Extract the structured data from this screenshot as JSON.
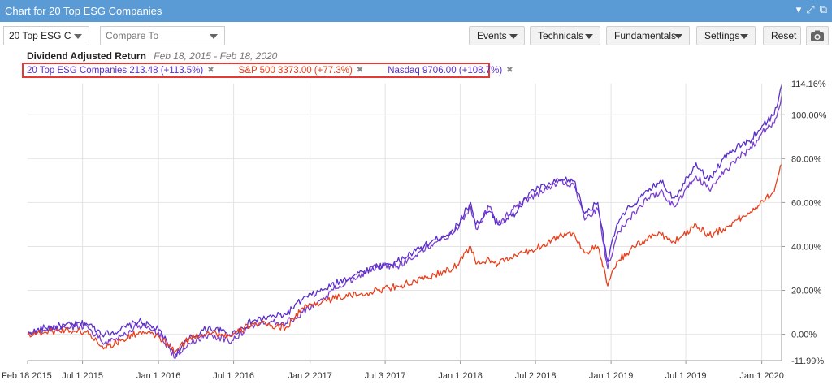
{
  "window": {
    "title": "Chart for 20 Top ESG Companies"
  },
  "toolbar": {
    "symbol_select": "20 Top ESG C",
    "compare_placeholder": "Compare To",
    "events": "Events",
    "technicals": "Technicals",
    "fundamentals": "Fundamentals",
    "settings": "Settings",
    "reset": "Reset"
  },
  "subtitle": {
    "label": "Dividend Adjusted Return",
    "range": "Feb 18, 2015 - Feb 18, 2020"
  },
  "legend": [
    {
      "text": "20 Top ESG Companies 213.48 (+113.5%)",
      "color": "#5b2fc9"
    },
    {
      "text": "S&P 500 3373.00 (+77.3%)",
      "color": "#e8401c"
    },
    {
      "text": "Nasdaq 9706.00 (+108.7%)",
      "color": "#5b2fc9"
    }
  ],
  "colors": {
    "titlebar": "#5b9bd5",
    "esg": "#5b2fc9",
    "sp500": "#e8401c",
    "nasdaq": "#7b3fd0",
    "grid": "#e4e4e4",
    "legend_border": "#e53935"
  },
  "chart_data": {
    "type": "line",
    "title": "Dividend Adjusted Return",
    "ylabel": "",
    "xlabel": "",
    "ylim": [
      -11.99,
      114.16
    ],
    "xlim": [
      "2015-02-18",
      "2020-02-18"
    ],
    "grid": true,
    "legend_position": "top-left",
    "y_ticks": [
      "100.00%",
      "80.00%",
      "60.00%",
      "40.00%",
      "20.00%",
      "0.00%"
    ],
    "y_ticks_values": [
      100,
      80,
      60,
      40,
      20,
      0
    ],
    "y_extremes": [
      {
        "label": "114.16%",
        "value": 114.16
      },
      {
        "label": "-11.99%",
        "value": -11.99
      }
    ],
    "x_ticks": [
      {
        "label": "Feb 18 2015",
        "date": "2015-02-18"
      },
      {
        "label": "Jul 1 2015",
        "date": "2015-07-01"
      },
      {
        "label": "Jan 1 2016",
        "date": "2016-01-01"
      },
      {
        "label": "Jul 1 2016",
        "date": "2016-07-01"
      },
      {
        "label": "Jan 2 2017",
        "date": "2017-01-02"
      },
      {
        "label": "Jul 3 2017",
        "date": "2017-07-03"
      },
      {
        "label": "Jan 1 2018",
        "date": "2018-01-01"
      },
      {
        "label": "Jul 2 2018",
        "date": "2018-07-02"
      },
      {
        "label": "Jan 1 2019",
        "date": "2019-01-01"
      },
      {
        "label": "Jul 1 2019",
        "date": "2019-07-01"
      },
      {
        "label": "Jan 1 2020",
        "date": "2020-01-01"
      }
    ],
    "series": [
      {
        "name": "20 Top ESG Companies",
        "color": "#5b2fc9",
        "x": [
          "2015-02-18",
          "2015-04-01",
          "2015-05-20",
          "2015-07-10",
          "2015-08-24",
          "2015-10-01",
          "2015-11-15",
          "2016-01-01",
          "2016-02-11",
          "2016-03-15",
          "2016-05-01",
          "2016-06-27",
          "2016-08-15",
          "2016-10-01",
          "2016-11-04",
          "2016-12-15",
          "2017-02-01",
          "2017-03-15",
          "2017-05-01",
          "2017-06-15",
          "2017-08-01",
          "2017-09-15",
          "2017-11-01",
          "2017-12-15",
          "2018-01-26",
          "2018-02-08",
          "2018-03-12",
          "2018-04-02",
          "2018-05-15",
          "2018-06-20",
          "2018-08-01",
          "2018-08-29",
          "2018-10-03",
          "2018-10-29",
          "2018-11-30",
          "2018-12-24",
          "2019-01-15",
          "2019-02-15",
          "2019-04-01",
          "2019-04-30",
          "2019-06-03",
          "2019-07-26",
          "2019-08-26",
          "2019-09-30",
          "2019-11-01",
          "2019-12-02",
          "2020-01-02",
          "2020-01-31",
          "2020-02-18"
        ],
        "values": [
          0,
          3,
          4,
          5,
          0,
          2,
          6,
          2,
          -9,
          -2,
          3,
          0,
          6,
          8,
          9,
          16,
          20,
          24,
          28,
          31,
          33,
          38,
          43,
          47,
          60,
          50,
          56,
          50,
          55,
          65,
          68,
          70,
          70,
          55,
          60,
          33,
          50,
          58,
          65,
          70,
          62,
          78,
          70,
          80,
          85,
          88,
          95,
          100,
          113.5
        ]
      },
      {
        "name": "S&P 500",
        "color": "#e8401c",
        "x": [
          "2015-02-18",
          "2015-04-01",
          "2015-05-20",
          "2015-07-10",
          "2015-08-24",
          "2015-10-01",
          "2015-11-15",
          "2016-01-01",
          "2016-02-11",
          "2016-03-15",
          "2016-05-01",
          "2016-06-27",
          "2016-08-15",
          "2016-10-01",
          "2016-11-04",
          "2016-12-15",
          "2017-02-01",
          "2017-03-15",
          "2017-05-01",
          "2017-06-15",
          "2017-08-01",
          "2017-09-15",
          "2017-11-01",
          "2017-12-15",
          "2018-01-26",
          "2018-02-08",
          "2018-03-12",
          "2018-04-02",
          "2018-05-15",
          "2018-06-20",
          "2018-08-01",
          "2018-08-29",
          "2018-10-03",
          "2018-10-29",
          "2018-11-30",
          "2018-12-24",
          "2019-01-15",
          "2019-02-15",
          "2019-04-01",
          "2019-04-30",
          "2019-06-03",
          "2019-07-26",
          "2019-08-26",
          "2019-09-30",
          "2019-11-01",
          "2019-12-02",
          "2020-01-02",
          "2020-01-31",
          "2020-02-18"
        ],
        "values": [
          0,
          1,
          2,
          1,
          -6,
          -3,
          1,
          -1,
          -8,
          -2,
          1,
          -1,
          5,
          4,
          3,
          12,
          15,
          17,
          18,
          20,
          22,
          24,
          27,
          30,
          40,
          32,
          34,
          32,
          36,
          38,
          42,
          45,
          46,
          37,
          40,
          22,
          33,
          38,
          44,
          46,
          42,
          50,
          45,
          48,
          52,
          55,
          61,
          65,
          77.3
        ]
      },
      {
        "name": "Nasdaq",
        "color": "#7b3fd0",
        "x": [
          "2015-02-18",
          "2015-04-01",
          "2015-05-20",
          "2015-07-10",
          "2015-08-24",
          "2015-10-01",
          "2015-11-15",
          "2016-01-01",
          "2016-02-11",
          "2016-03-15",
          "2016-05-01",
          "2016-06-27",
          "2016-08-15",
          "2016-10-01",
          "2016-11-04",
          "2016-12-15",
          "2017-02-01",
          "2017-03-15",
          "2017-05-01",
          "2017-06-15",
          "2017-08-01",
          "2017-09-15",
          "2017-11-01",
          "2017-12-15",
          "2018-01-26",
          "2018-02-08",
          "2018-03-12",
          "2018-04-02",
          "2018-05-15",
          "2018-06-20",
          "2018-08-01",
          "2018-08-29",
          "2018-10-03",
          "2018-10-29",
          "2018-11-30",
          "2018-12-24",
          "2019-01-15",
          "2019-02-15",
          "2019-04-01",
          "2019-04-30",
          "2019-06-03",
          "2019-07-26",
          "2019-08-26",
          "2019-09-30",
          "2019-11-01",
          "2019-12-02",
          "2020-01-02",
          "2020-01-31",
          "2020-02-18"
        ],
        "values": [
          0,
          2,
          3,
          4,
          -4,
          -1,
          4,
          1,
          -11,
          -4,
          0,
          -3,
          4,
          6,
          5,
          10,
          16,
          22,
          27,
          31,
          31,
          36,
          42,
          46,
          58,
          48,
          58,
          50,
          58,
          62,
          66,
          70,
          68,
          52,
          57,
          30,
          45,
          53,
          62,
          65,
          58,
          72,
          66,
          73,
          80,
          84,
          92,
          96,
          108.7
        ]
      }
    ]
  }
}
